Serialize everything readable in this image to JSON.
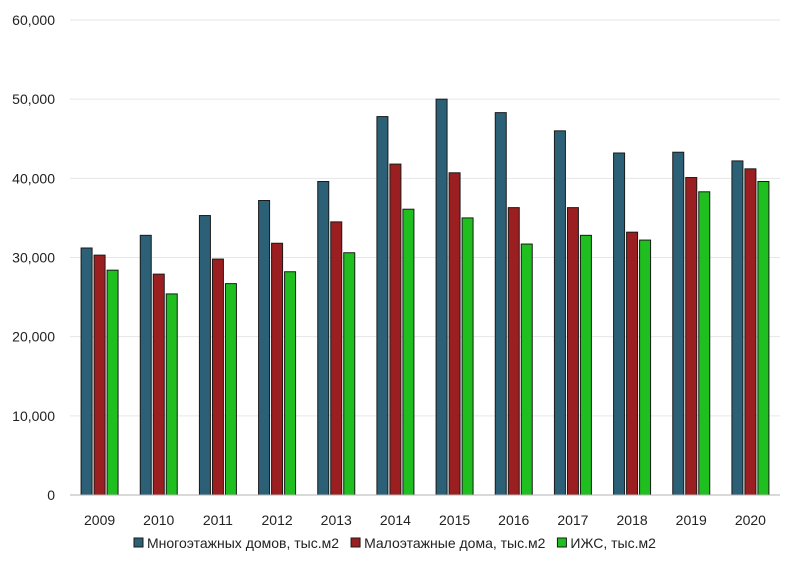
{
  "chart_data": {
    "type": "bar",
    "title": "",
    "xlabel": "",
    "ylabel": "",
    "categories": [
      "2009",
      "2010",
      "2011",
      "2012",
      "2013",
      "2014",
      "2015",
      "2016",
      "2017",
      "2018",
      "2019",
      "2020"
    ],
    "series": [
      {
        "name": "Многоэтажных домов, тыс.м2",
        "color": "#2b6076",
        "values": [
          31200,
          32800,
          35300,
          37200,
          39600,
          47800,
          50000,
          48300,
          46000,
          43200,
          43300,
          42200
        ]
      },
      {
        "name": "Малоэтажные дома, тыс.м2",
        "color": "#9b1f20",
        "values": [
          30300,
          27900,
          29800,
          31800,
          34500,
          41800,
          40700,
          36300,
          36300,
          33200,
          40100,
          41200
        ]
      },
      {
        "name": "ИЖС, тыс.м2",
        "color": "#1fbf1f",
        "values": [
          28400,
          25400,
          26700,
          28200,
          30600,
          36100,
          35000,
          31700,
          32800,
          32200,
          38300,
          39600
        ]
      }
    ],
    "ylim": [
      0,
      60000
    ],
    "yticks": [
      {
        "value": 0,
        "label": "0"
      },
      {
        "value": 10000,
        "label": "10,000"
      },
      {
        "value": 20000,
        "label": "20,000"
      },
      {
        "value": 30000,
        "label": "30,000"
      },
      {
        "value": 40000,
        "label": "40,000"
      },
      {
        "value": 50000,
        "label": "50,000"
      },
      {
        "value": 60000,
        "label": "60,000"
      }
    ],
    "grid": true,
    "legend_position": "bottom"
  }
}
